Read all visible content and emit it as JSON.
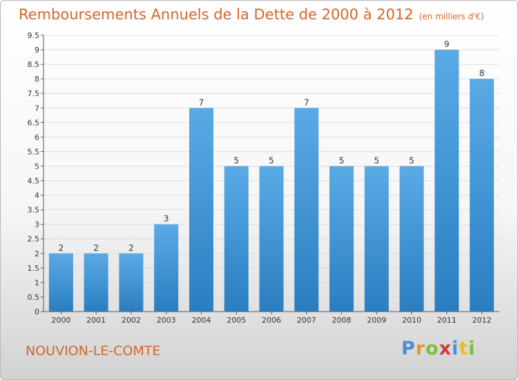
{
  "chart_data": {
    "type": "bar",
    "title": "Remboursements Annuels de la Dette de 2000 à 2012",
    "subtitle": "(en milliers d'€)",
    "categories": [
      "2000",
      "2001",
      "2002",
      "2003",
      "2004",
      "2005",
      "2006",
      "2007",
      "2008",
      "2009",
      "2010",
      "2011",
      "2012"
    ],
    "values": [
      2,
      2,
      2,
      3,
      7,
      5,
      5,
      7,
      5,
      5,
      5,
      9,
      8
    ],
    "value_labels": [
      "2",
      "2",
      "2",
      "3",
      "7",
      "5",
      "5",
      "7",
      "5",
      "5",
      "5",
      "9",
      "8"
    ],
    "ylim": [
      0,
      9.5
    ],
    "yticks": [
      "0",
      "0.5",
      "1",
      "1.5",
      "2",
      "2.5",
      "3",
      "3.5",
      "4",
      "4.5",
      "5",
      "5.5",
      "6",
      "6.5",
      "7",
      "7.5",
      "8",
      "8.5",
      "9",
      "9.5"
    ],
    "grid": true,
    "bar_color_top": "#5aaae6",
    "bar_color_bottom": "#2a7ec0"
  },
  "footer": {
    "commune": "NOUVION-LE-COMTE",
    "logo_letters": [
      "P",
      "r",
      "o",
      "x",
      "i",
      "t",
      "i"
    ],
    "logo_colors": [
      "#4a8fd4",
      "#e8962a",
      "#7bbf3a",
      "#d43a3a",
      "#4a8fd4",
      "#e8c020",
      "#7bbf3a"
    ]
  }
}
